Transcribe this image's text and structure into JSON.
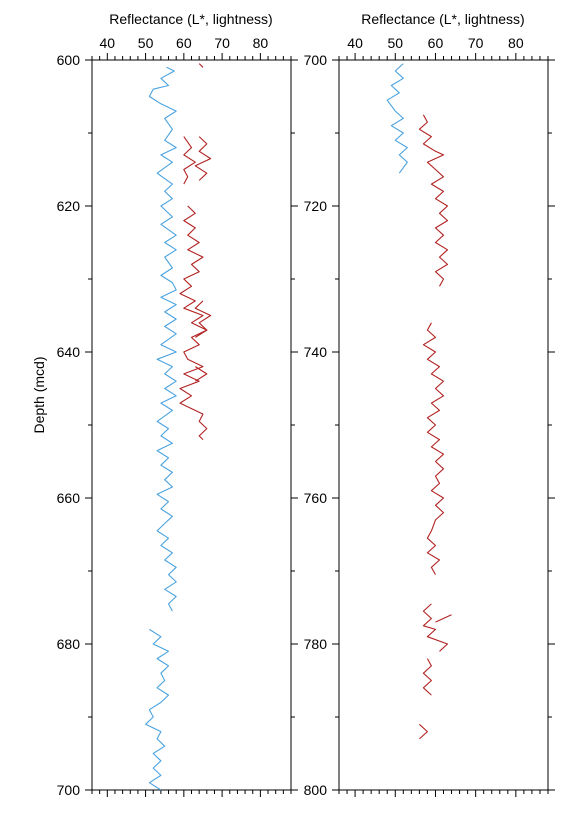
{
  "chart_data": [
    {
      "type": "line",
      "title": "",
      "xlabel": "Reflectance  (L*, lightness)",
      "ylabel": "Depth  (mcd)",
      "xlim": [
        36,
        88
      ],
      "ylim": [
        600,
        700
      ],
      "y_inverted": true,
      "x_axis_position": "top",
      "x_ticks": [
        40,
        50,
        60,
        70,
        80
      ],
      "x_tick_labels": [
        "40",
        "50",
        "60",
        "70",
        "80"
      ],
      "x_minor_ticks": [
        36,
        38,
        42,
        44,
        46,
        48,
        52,
        54,
        56,
        58,
        62,
        64,
        66,
        68,
        72,
        74,
        76,
        78,
        82,
        84,
        86,
        88
      ],
      "y_ticks": [
        600,
        620,
        640,
        660,
        680,
        700
      ],
      "y_tick_labels": [
        "600",
        "620",
        "640",
        "660",
        "680",
        "700"
      ],
      "y_minor_ticks": [
        610,
        630,
        650,
        670,
        690
      ],
      "grid": false,
      "series": [
        {
          "color": "#4aa3e0",
          "points": [
            [
              55.5,
              601
            ],
            [
              57.5,
              601.5
            ],
            [
              54,
              602.5
            ],
            [
              56,
              603.5
            ],
            [
              52,
              604
            ],
            [
              51,
              605
            ],
            [
              54,
              606
            ],
            [
              58,
              607
            ],
            [
              55,
              608
            ],
            [
              57,
              609.5
            ],
            [
              55,
              611
            ],
            [
              58,
              612
            ],
            [
              54,
              613
            ],
            [
              57,
              614
            ],
            [
              53,
              615.5
            ],
            [
              57,
              617
            ],
            [
              55,
              618
            ],
            [
              57,
              619
            ],
            [
              54,
              620
            ],
            [
              57,
              621.5
            ],
            [
              54,
              622.5
            ],
            [
              58,
              624
            ],
            [
              55,
              625
            ],
            [
              58,
              626
            ],
            [
              55,
              627
            ],
            [
              57,
              628.5
            ],
            [
              54,
              629.5
            ],
            [
              57,
              630.5
            ],
            [
              58,
              631.5
            ],
            [
              54,
              632.5
            ],
            [
              58,
              633.5
            ],
            [
              55,
              634.5
            ],
            [
              58,
              635.5
            ],
            [
              55,
              636.5
            ],
            [
              58,
              637.5
            ],
            [
              54,
              639
            ],
            [
              58,
              640
            ],
            [
              53,
              641
            ],
            [
              57,
              642
            ],
            [
              55,
              643
            ],
            [
              58,
              644
            ],
            [
              55,
              645
            ],
            [
              58,
              646
            ],
            [
              54,
              647
            ],
            [
              57,
              648
            ],
            [
              53,
              649.5
            ],
            [
              56,
              650.5
            ],
            [
              54,
              651.5
            ],
            [
              57,
              652.5
            ],
            [
              53,
              653.5
            ],
            [
              56,
              654.5
            ],
            [
              54,
              655.5
            ],
            [
              57,
              656.5
            ],
            [
              55,
              657.5
            ],
            [
              57,
              658.5
            ],
            [
              53,
              659.5
            ],
            [
              56,
              660.5
            ],
            [
              54,
              661.5
            ],
            [
              57,
              662.5
            ],
            [
              55,
              663.5
            ],
            [
              53,
              664.5
            ],
            [
              56,
              665.5
            ],
            [
              54,
              666.5
            ],
            [
              57,
              667.5
            ],
            [
              55,
              668.5
            ],
            [
              58,
              669.5
            ],
            [
              56,
              670.5
            ],
            [
              58,
              671.5
            ],
            [
              55,
              672.5
            ],
            [
              58,
              673.5
            ],
            [
              56,
              674.5
            ],
            [
              57,
              675.5
            ],
            [
              51,
              678
            ],
            [
              54,
              679
            ],
            [
              52,
              680
            ],
            [
              56,
              681
            ],
            [
              53,
              682
            ],
            [
              56,
              683
            ],
            [
              54,
              684
            ],
            [
              55,
              685
            ],
            [
              53,
              686
            ],
            [
              56,
              687
            ],
            [
              54,
              688
            ],
            [
              51,
              689
            ],
            [
              52,
              690
            ],
            [
              50,
              691
            ],
            [
              54,
              692
            ],
            [
              53,
              693
            ],
            [
              55,
              694
            ],
            [
              52,
              695
            ],
            [
              54,
              696
            ],
            [
              52,
              697
            ],
            [
              54,
              698
            ],
            [
              51,
              699
            ],
            [
              54,
              700
            ]
          ]
        },
        {
          "color": "#b22222",
          "points": [
            [
              64,
              600.5
            ],
            [
              65,
              601
            ],
            [
              60,
              610.5
            ],
            [
              62,
              612
            ],
            [
              60,
              613
            ],
            [
              63,
              614
            ],
            [
              60,
              615
            ],
            [
              61,
              616
            ],
            [
              60,
              617
            ],
            [
              64,
              610.5
            ],
            [
              66,
              611.5
            ],
            [
              64,
              612.5
            ],
            [
              67,
              613.5
            ],
            [
              63,
              614.5
            ],
            [
              66,
              615.5
            ],
            [
              64,
              616.5
            ],
            [
              61,
              620
            ],
            [
              63,
              621
            ],
            [
              60,
              622
            ],
            [
              63,
              623
            ],
            [
              61,
              624
            ],
            [
              64,
              625
            ],
            [
              61,
              626
            ],
            [
              65,
              627
            ],
            [
              62,
              628
            ],
            [
              64,
              629
            ],
            [
              60,
              630
            ],
            [
              62,
              631
            ],
            [
              59,
              632
            ],
            [
              63,
              633
            ],
            [
              60,
              634
            ],
            [
              65,
              635
            ],
            [
              62,
              636
            ],
            [
              66,
              637
            ],
            [
              62,
              638
            ],
            [
              64,
              639
            ],
            [
              60,
              640
            ],
            [
              61,
              641
            ],
            [
              65,
              642
            ],
            [
              60,
              643
            ],
            [
              64,
              644
            ],
            [
              59,
              645
            ],
            [
              62,
              646
            ],
            [
              59,
              647
            ],
            [
              65,
              648.5
            ],
            [
              64,
              649.5
            ],
            [
              66,
              650.5
            ],
            [
              64,
              651.5
            ],
            [
              65,
              652
            ],
            [
              65,
              633
            ],
            [
              63,
              634
            ],
            [
              67,
              635
            ],
            [
              64,
              636
            ],
            [
              66,
              637
            ],
            [
              63,
              638
            ],
            [
              63,
              642
            ],
            [
              66,
              643
            ],
            [
              63,
              644
            ]
          ]
        }
      ]
    },
    {
      "type": "line",
      "title": "",
      "xlabel": "Reflectance  (L*, lightness)",
      "ylabel": "",
      "xlim": [
        36,
        88
      ],
      "ylim": [
        700,
        800
      ],
      "y_inverted": true,
      "x_axis_position": "top",
      "x_ticks": [
        40,
        50,
        60,
        70,
        80
      ],
      "x_tick_labels": [
        "40",
        "50",
        "60",
        "70",
        "80"
      ],
      "x_minor_ticks": [
        36,
        38,
        42,
        44,
        46,
        48,
        52,
        54,
        56,
        58,
        62,
        64,
        66,
        68,
        72,
        74,
        76,
        78,
        82,
        84,
        86,
        88
      ],
      "y_ticks": [
        700,
        720,
        740,
        760,
        780,
        800
      ],
      "y_tick_labels": [
        "700",
        "720",
        "740",
        "760",
        "780",
        "800"
      ],
      "y_minor_ticks": [
        710,
        730,
        750,
        770,
        790
      ],
      "grid": false,
      "series": [
        {
          "color": "#4aa3e0",
          "points": [
            [
              52,
              700.5
            ],
            [
              50,
              701.5
            ],
            [
              52,
              702.5
            ],
            [
              49,
              703.5
            ],
            [
              51,
              704.5
            ],
            [
              48,
              705.5
            ],
            [
              50,
              707
            ],
            [
              52,
              708
            ],
            [
              49,
              709
            ],
            [
              52,
              710
            ],
            [
              50,
              711
            ],
            [
              53,
              712
            ],
            [
              51,
              713
            ],
            [
              53,
              714
            ],
            [
              51,
              715.5
            ]
          ]
        },
        {
          "color": "#b22222",
          "points": [
            [
              57,
              707.5
            ],
            [
              58,
              708.5
            ],
            [
              56,
              709.5
            ],
            [
              59,
              710.5
            ],
            [
              57,
              711.5
            ],
            [
              60,
              712.5
            ],
            [
              62,
              713
            ],
            [
              58,
              714
            ],
            [
              60,
              715
            ],
            [
              62,
              716
            ],
            [
              59,
              717
            ],
            [
              62,
              718
            ],
            [
              60,
              719
            ],
            [
              63,
              720
            ],
            [
              61,
              721
            ],
            [
              63,
              722
            ],
            [
              60,
              723
            ],
            [
              62,
              724
            ],
            [
              60,
              725
            ],
            [
              63,
              726
            ],
            [
              61,
              727
            ],
            [
              63,
              728
            ],
            [
              60,
              729
            ],
            [
              62,
              730
            ],
            [
              61,
              731
            ],
            [
              59,
              736
            ],
            [
              58,
              737
            ],
            [
              60,
              738
            ],
            [
              57,
              739
            ],
            [
              60,
              740
            ],
            [
              58,
              741
            ],
            [
              61,
              742
            ],
            [
              59,
              743
            ],
            [
              62,
              744
            ],
            [
              60,
              745
            ],
            [
              62,
              746
            ],
            [
              59,
              747
            ],
            [
              61,
              748
            ],
            [
              58,
              749
            ],
            [
              60,
              750
            ],
            [
              58,
              751
            ],
            [
              61,
              752
            ],
            [
              59,
              753
            ],
            [
              62,
              754
            ],
            [
              60,
              755
            ],
            [
              62,
              756
            ],
            [
              60,
              757
            ],
            [
              61,
              758
            ],
            [
              59,
              759
            ],
            [
              62,
              760
            ],
            [
              60,
              761
            ],
            [
              62,
              762
            ],
            [
              60,
              763
            ],
            [
              59,
              764.5
            ],
            [
              58,
              765.5
            ],
            [
              60,
              766.5
            ],
            [
              58,
              767.5
            ],
            [
              61,
              768.5
            ],
            [
              59,
              769.5
            ],
            [
              60,
              770.5
            ],
            [
              59,
              774.5
            ],
            [
              57,
              775.5
            ],
            [
              59,
              776.5
            ],
            [
              57,
              777.5
            ],
            [
              60,
              778
            ],
            [
              58,
              779
            ],
            [
              63,
              780
            ],
            [
              61,
              781
            ],
            [
              64,
              776
            ],
            [
              60,
              777
            ],
            [
              58,
              782
            ],
            [
              59,
              783
            ],
            [
              57,
              784
            ],
            [
              59,
              785
            ],
            [
              57,
              786
            ],
            [
              59,
              787
            ],
            [
              56,
              791
            ],
            [
              58,
              792
            ],
            [
              56,
              793
            ]
          ]
        }
      ]
    }
  ]
}
